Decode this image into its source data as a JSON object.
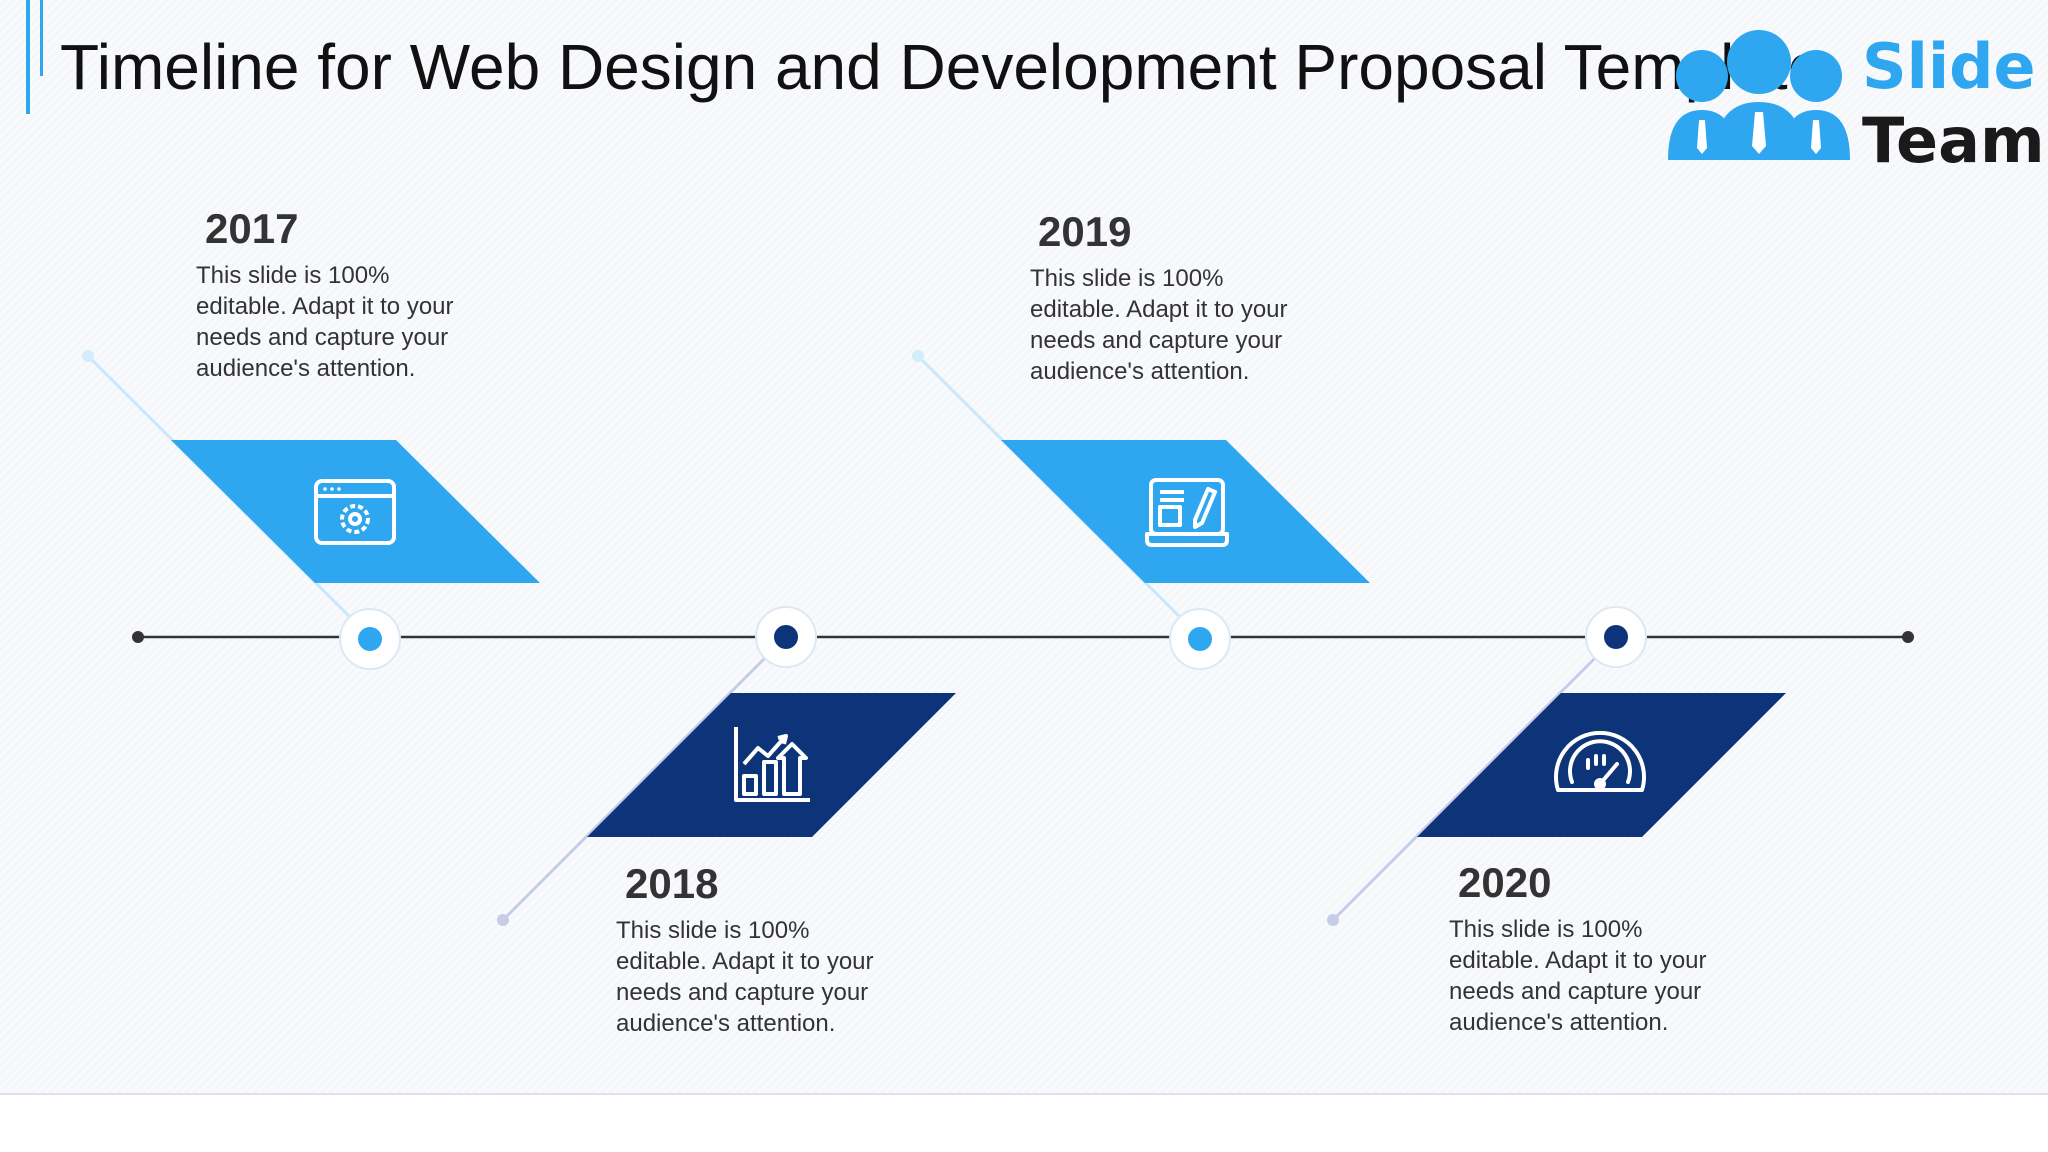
{
  "slide": {
    "title": "Timeline for Web Design and Development Proposal Template",
    "logo": {
      "line1": "Slide",
      "line2": "Team"
    }
  },
  "colors": {
    "light_blue": "#2ea7f0",
    "dark_blue": "#0d3378",
    "line": "#333333",
    "text": "#333333"
  },
  "timeline": {
    "milestones": [
      {
        "year": "2017",
        "text": "This slide is 100% editable. Adapt it to your needs and capture your audience's attention.",
        "icon": "browser-settings-icon",
        "color": "light"
      },
      {
        "year": "2018",
        "text": "This slide is 100% editable. Adapt it to your needs and capture your audience's attention.",
        "icon": "growth-chart-icon",
        "color": "dark"
      },
      {
        "year": "2019",
        "text": "This slide is 100% editable. Adapt it to your needs and capture your audience's attention.",
        "icon": "laptop-edit-icon",
        "color": "light"
      },
      {
        "year": "2020",
        "text": "This slide is 100% editable. Adapt it to your needs and capture your audience's attention.",
        "icon": "speedometer-icon",
        "color": "dark"
      }
    ]
  }
}
